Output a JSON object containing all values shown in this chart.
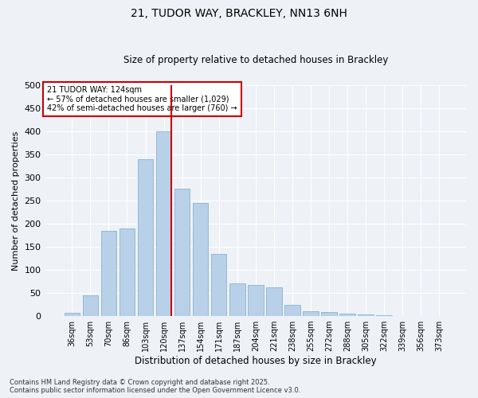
{
  "title": "21, TUDOR WAY, BRACKLEY, NN13 6NH",
  "subtitle": "Size of property relative to detached houses in Brackley",
  "xlabel": "Distribution of detached houses by size in Brackley",
  "ylabel": "Number of detached properties",
  "categories": [
    "36sqm",
    "53sqm",
    "70sqm",
    "86sqm",
    "103sqm",
    "120sqm",
    "137sqm",
    "154sqm",
    "171sqm",
    "187sqm",
    "204sqm",
    "221sqm",
    "238sqm",
    "255sqm",
    "272sqm",
    "288sqm",
    "305sqm",
    "322sqm",
    "339sqm",
    "356sqm",
    "373sqm"
  ],
  "values": [
    7,
    45,
    185,
    190,
    340,
    400,
    275,
    245,
    135,
    70,
    68,
    62,
    25,
    10,
    9,
    5,
    3,
    2,
    1,
    1,
    1
  ],
  "bar_color": "#b8d0e8",
  "bar_edge_color": "#7aabcc",
  "vline_color": "#cc0000",
  "vline_pos": 5.43,
  "annotation_title": "21 TUDOR WAY: 124sqm",
  "annotation_line1": "← 57% of detached houses are smaller (1,029)",
  "annotation_line2": "42% of semi-detached houses are larger (760) →",
  "annotation_box_edgecolor": "#cc0000",
  "ylim": [
    0,
    500
  ],
  "yticks": [
    0,
    50,
    100,
    150,
    200,
    250,
    300,
    350,
    400,
    450,
    500
  ],
  "footer_line1": "Contains HM Land Registry data © Crown copyright and database right 2025.",
  "footer_line2": "Contains public sector information licensed under the Open Government Licence v3.0.",
  "bg_color": "#eef2f7",
  "plot_bg_color": "#eef2f7",
  "title_fontsize": 10,
  "subtitle_fontsize": 8.5,
  "ylabel_fontsize": 8,
  "xlabel_fontsize": 8.5
}
